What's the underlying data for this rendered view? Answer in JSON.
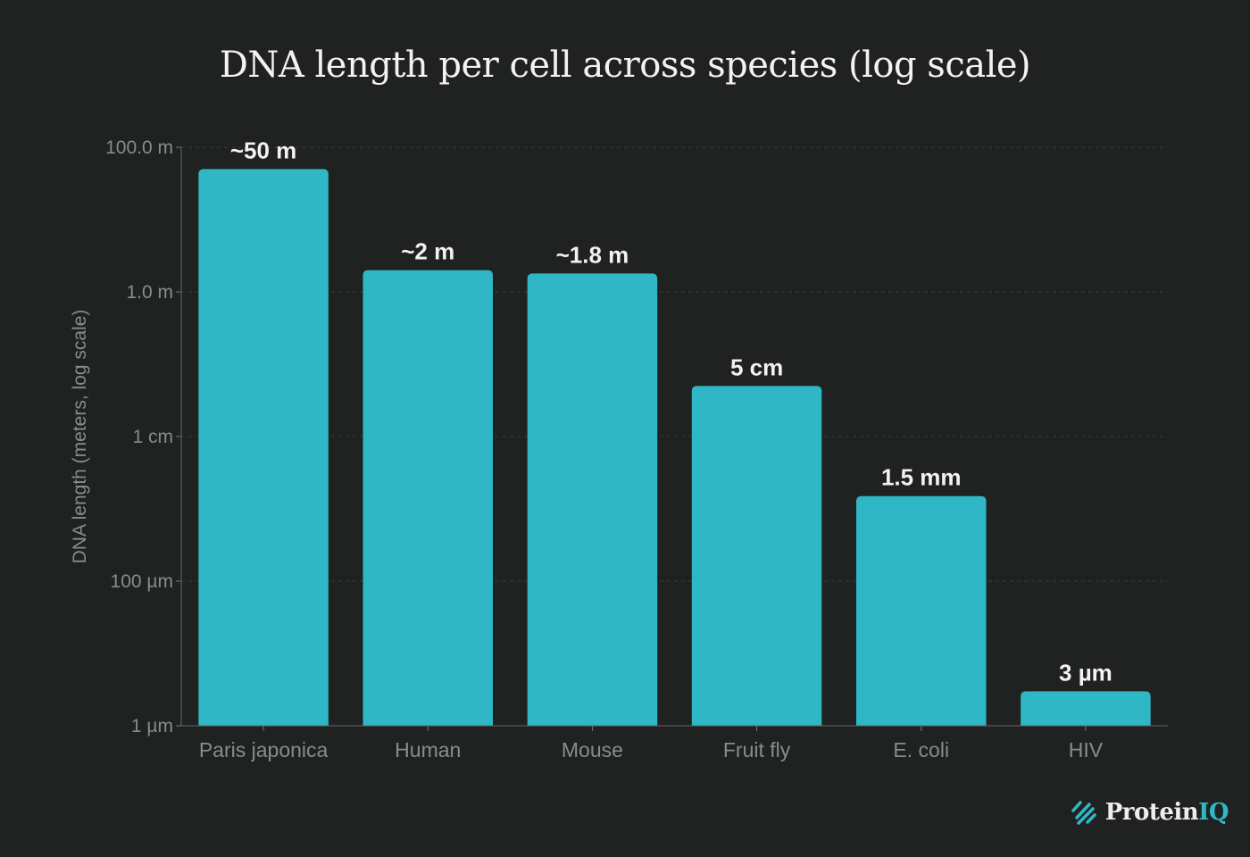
{
  "chart_data": {
    "type": "bar",
    "title": "DNA length per cell across species (log scale)",
    "xlabel": "",
    "ylabel": "DNA length (meters, log scale)",
    "yscale": "log",
    "ylim": [
      1e-06,
      100
    ],
    "yticks": [
      {
        "value": 100,
        "label": "100.0 m"
      },
      {
        "value": 1,
        "label": "1.0 m"
      },
      {
        "value": 0.01,
        "label": "1 cm"
      },
      {
        "value": 0.0001,
        "label": "100 µm"
      },
      {
        "value": 1e-06,
        "label": "1 µm"
      }
    ],
    "grid": true,
    "categories": [
      "Paris japonica",
      "Human",
      "Mouse",
      "Fruit fly",
      "E. coli",
      "HIV"
    ],
    "values": [
      50,
      2,
      1.8,
      0.05,
      0.0015,
      3e-06
    ],
    "data_labels": [
      "~50 m",
      "~2 m",
      "~1.8 m",
      "5 cm",
      "1.5 mm",
      "3 µm"
    ],
    "bar_color": "#2fb7c6"
  },
  "branding": {
    "logo_text": "Protein",
    "logo_accent": "IQ"
  }
}
